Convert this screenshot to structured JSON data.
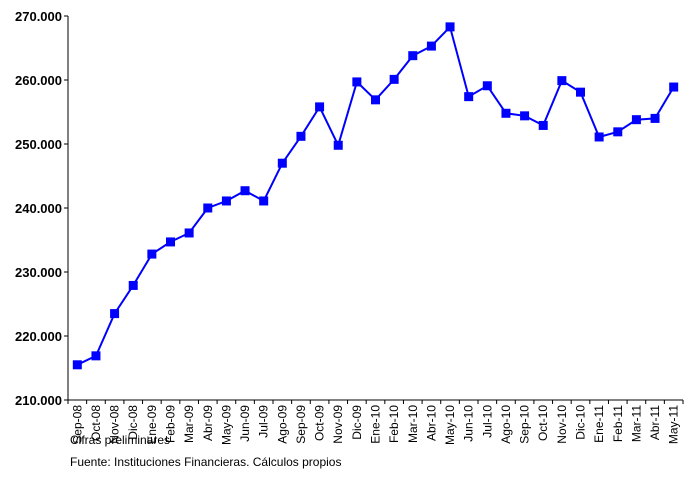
{
  "chart_data": {
    "type": "line",
    "categories": [
      "Sep-08",
      "Oct-08",
      "Nov-08",
      "Dic-08",
      "Ene-09",
      "Feb-09",
      "Mar-09",
      "Abr-09",
      "May-09",
      "Jun-09",
      "Jul-09",
      "Ago-09",
      "Sep-09",
      "Oct-09",
      "Nov-09",
      "Dic-09",
      "Ene-10",
      "Feb-10",
      "Mar-10",
      "Abr-10",
      "May-10",
      "Jun-10",
      "Jul-10",
      "Ago-10",
      "Sep-10",
      "Oct-10",
      "Nov-10",
      "Dic-10",
      "Ene-11",
      "Feb-11",
      "Mar-11",
      "Abr-11",
      "May-11"
    ],
    "series": [
      {
        "values": [
          215500,
          216900,
          223500,
          227900,
          232800,
          234700,
          236100,
          240000,
          241100,
          242700,
          241100,
          247000,
          251200,
          255800,
          249800,
          259700,
          256900,
          260100,
          263800,
          265300,
          268300,
          257400,
          259100,
          254800,
          254400,
          252900,
          259900,
          258100,
          251100,
          251900,
          253800,
          254000,
          258900
        ],
        "color": "#0000FF"
      }
    ],
    "ylim": [
      210000,
      270000
    ],
    "yticks": [
      210000,
      220000,
      230000,
      240000,
      250000,
      260000,
      270000
    ],
    "ytick_labels": [
      "210.000",
      "220.000",
      "230.000",
      "240.000",
      "250.000",
      "260.000",
      "270.000"
    ],
    "grid": false,
    "legend": "none",
    "title": "",
    "xlabel": "",
    "ylabel": ""
  },
  "footnotes": {
    "note1": "Cifras preliminares",
    "note2": "Fuente: Instituciones Financieras. Cálculos propios"
  }
}
